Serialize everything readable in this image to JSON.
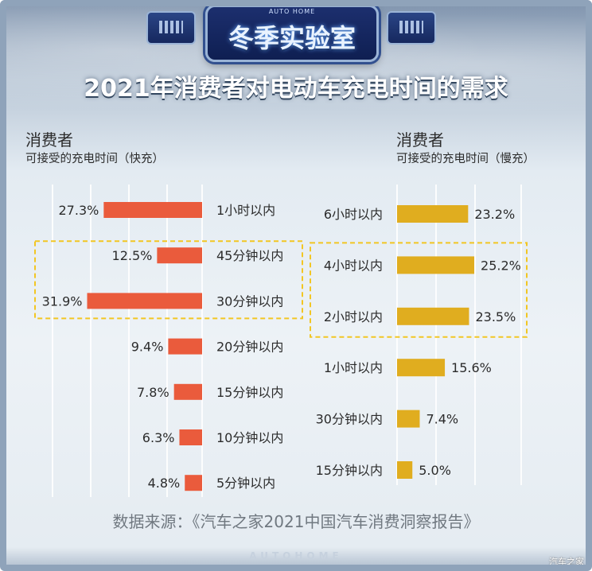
{
  "header": {
    "badge_small_text": "AUTO HOME",
    "badge_title": "冬季实验室",
    "main_title": "2021年消费者对电动车充电时间的需求"
  },
  "left_panel": {
    "heading": "消费者",
    "subheading": "可接受的充电时间（快充）"
  },
  "right_panel": {
    "heading": "消费者",
    "subheading": "可接受的充电时间（慢充）"
  },
  "source_text": "数据来源：《汽车之家2021中国汽车消费洞察报告》",
  "footer_wordmark": "AUTOHOME",
  "watermark": "汽车之家",
  "colors": {
    "fast_bar": "#ea5b3c",
    "slow_bar": "#e0ad1f",
    "highlight_box": "#f2c623"
  },
  "chart_data": [
    {
      "type": "bar",
      "orientation": "horizontal",
      "title": "可接受的充电时间（快充）",
      "categories": [
        "1小时以内",
        "45分钟以内",
        "30分钟以内",
        "20分钟以内",
        "15分钟以内",
        "10分钟以内",
        "5分钟以内"
      ],
      "values": [
        27.3,
        12.5,
        31.9,
        9.4,
        7.8,
        6.3,
        4.8
      ],
      "value_labels": [
        "27.3%",
        "12.5%",
        "31.9%",
        "9.4%",
        "7.8%",
        "6.3%",
        "4.8%"
      ],
      "unit": "%",
      "xlim": [
        0,
        35
      ],
      "highlighted": [
        "45分钟以内",
        "30分钟以内"
      ],
      "grid": true
    },
    {
      "type": "bar",
      "orientation": "horizontal",
      "title": "可接受的充电时间（慢充）",
      "categories": [
        "6小时以内",
        "4小时以内",
        "2小时以内",
        "1小时以内",
        "30分钟以内",
        "15分钟以内"
      ],
      "values": [
        23.2,
        25.2,
        23.5,
        15.6,
        7.4,
        5.0
      ],
      "value_labels": [
        "23.2%",
        "25.2%",
        "23.5%",
        "15.6%",
        "7.4%",
        "5.0%"
      ],
      "unit": "%",
      "xlim": [
        0,
        30
      ],
      "highlighted": [
        "4小时以内",
        "2小时以内"
      ],
      "grid": true
    }
  ]
}
